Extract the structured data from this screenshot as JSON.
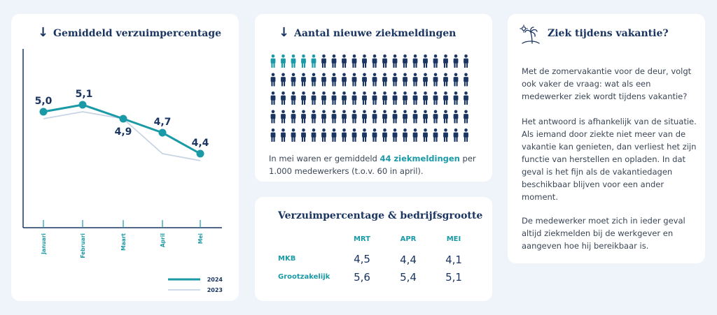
{
  "colors": {
    "navy": "#1a3561",
    "teal": "#1a9aa6",
    "series_2023": "#c8d4e4"
  },
  "chart_card": {
    "title": "Gemiddeld verzuimpercentage",
    "arrow_icon": "arrow-down-icon"
  },
  "chart_data": {
    "type": "line",
    "title": "Gemiddeld verzuimpercentage",
    "categories": [
      "Januari",
      "Februari",
      "Maart",
      "April",
      "Mei"
    ],
    "series": [
      {
        "name": "2024",
        "values": [
          5.0,
          5.1,
          4.9,
          4.7,
          4.4
        ],
        "labels": [
          "5,0",
          "5,1",
          "4,9",
          "4,7",
          "4,4"
        ],
        "color": "#1a9aa6"
      },
      {
        "name": "2023",
        "values": [
          4.9,
          5.0,
          4.9,
          4.4,
          4.3
        ],
        "color": "#c8d4e4"
      }
    ],
    "ylim": [
      3.6,
      5.8
    ],
    "legend": "bottom-right",
    "grid": false
  },
  "sick_card": {
    "title": "Aantal nieuwe ziekmeldingen",
    "arrow_icon": "arrow-down-icon",
    "person_icon": "person-icon",
    "total_icons": 100,
    "highlighted_icons": 5,
    "text_before": "In mei waren er gemiddeld ",
    "text_highlight": "44 ziekmeldingen",
    "text_after": " per 1.000 medewerkers (t.o.v. 60 in april)."
  },
  "table_card": {
    "title": "Verzuimpercentage & bedrijfsgrootte",
    "columns": [
      "MRT",
      "APR",
      "MEI"
    ],
    "rows": [
      {
        "label": "MKB",
        "values": [
          "4,5",
          "4,4",
          "4,1"
        ]
      },
      {
        "label": "Grootzakelijk",
        "values": [
          "5,6",
          "5,4",
          "5,1"
        ]
      }
    ]
  },
  "vacation_card": {
    "title": "Ziek tijdens vakantie?",
    "icon": "palm-island-icon",
    "paragraphs": [
      "Met de zomervakantie voor de deur, volgt ook vaker de vraag: wat als een medewerker ziek wordt tijdens vakantie?",
      "Het antwoord is afhankelijk van de situatie. Als iemand door ziekte niet meer van de vakantie kan genieten, dan verliest het zijn functie van herstellen en opladen. In dat geval is het fijn als de vakantiedagen beschikbaar blijven voor een ander moment.",
      "De medewerker moet zich in ieder geval altijd ziekmelden bij de werkgever en aangeven hoe hij bereikbaar is."
    ]
  }
}
